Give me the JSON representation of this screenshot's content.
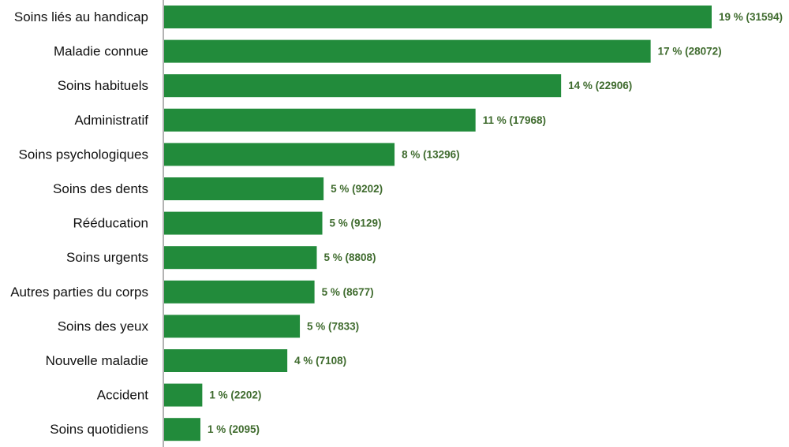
{
  "chart_data": {
    "type": "bar",
    "orientation": "horizontal",
    "categories": [
      "Soins liés au handicap",
      "Maladie connue",
      "Soins habituels",
      "Administratif",
      "Soins psychologiques",
      "Soins des dents",
      "Rééducation",
      "Soins urgents",
      "Autres parties du corps",
      "Soins des yeux",
      "Nouvelle maladie",
      "Accident",
      "Soins quotidiens"
    ],
    "values": [
      31594,
      28072,
      22906,
      17968,
      13296,
      9202,
      9129,
      8808,
      8677,
      7833,
      7108,
      2202,
      2095
    ],
    "data_labels": [
      "19 % (31594)",
      "17 % (28072)",
      "14 % (22906)",
      "11 % (17968)",
      "8 % (13296)",
      "5 % (9202)",
      "5 % (9129)",
      "5 % (8808)",
      "5 % (8677)",
      "5 % (7833)",
      "4 % (7108)",
      "1 % (2202)",
      "1 % (2095)"
    ],
    "title": "",
    "xlabel": "",
    "ylabel": "",
    "grid": false,
    "legend": "none",
    "colors": {
      "bar": "#228b3b",
      "label": "#3f6b2e",
      "axis": "#9a9a9a"
    }
  }
}
